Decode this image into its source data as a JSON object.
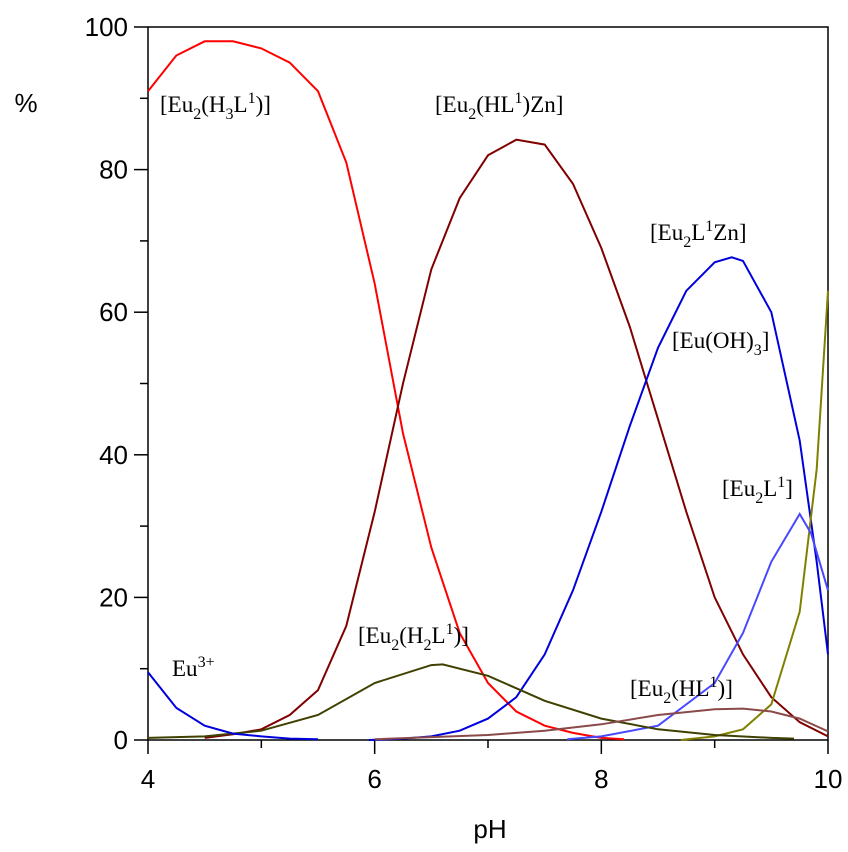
{
  "chart_data": {
    "type": "line",
    "x_label": "pH",
    "y_label": "%",
    "xlim": [
      4,
      10
    ],
    "xticks": [
      4,
      6,
      8,
      10
    ],
    "xminorticks": [
      5,
      7,
      9
    ],
    "ylim": [
      0,
      100
    ],
    "yticks": [
      0,
      20,
      40,
      60,
      80,
      100
    ],
    "yminorticks": [
      10,
      30,
      50,
      70,
      90
    ],
    "grid": false,
    "series": [
      {
        "label": [
          {
            "text": "[Eu"
          },
          {
            "text": "2",
            "shift": "sub"
          },
          {
            "text": "(H"
          },
          {
            "text": "3",
            "shift": "sub"
          },
          {
            "text": "L"
          },
          {
            "text": "1",
            "shift": "super"
          },
          {
            "text": ")]"
          }
        ],
        "color": "#ff0000",
        "x": [
          4,
          4.25,
          4.5,
          4.75,
          5,
          5.25,
          5.5,
          5.75,
          6,
          6.25,
          6.5,
          6.75,
          7,
          7.25,
          7.5,
          7.75,
          8,
          8.2
        ],
        "values": [
          91,
          96,
          98,
          98,
          97,
          95,
          91,
          81,
          64,
          43,
          27,
          15,
          8,
          4,
          2,
          1,
          0.3,
          0.1
        ]
      },
      {
        "label": [
          {
            "text": "[Eu"
          },
          {
            "text": "2",
            "shift": "sub"
          },
          {
            "text": "(HL"
          },
          {
            "text": "1",
            "shift": "super"
          },
          {
            "text": ")Zn]"
          }
        ],
        "color": "#800000",
        "x": [
          4.5,
          4.75,
          5,
          5.25,
          5.5,
          5.75,
          6,
          6.25,
          6.5,
          6.75,
          7,
          7.25,
          7.5,
          7.75,
          8,
          8.25,
          8.5,
          8.75,
          9,
          9.25,
          9.5,
          9.75,
          10
        ],
        "values": [
          0.3,
          0.8,
          1.5,
          3.5,
          7,
          16,
          32,
          50,
          66,
          76,
          82,
          84.2,
          83.5,
          78,
          69,
          58,
          45,
          32,
          20,
          12,
          6,
          2.5,
          0.5
        ]
      },
      {
        "label": [
          {
            "text": "[Eu"
          },
          {
            "text": "2",
            "shift": "sub"
          },
          {
            "text": "L"
          },
          {
            "text": "1",
            "shift": "super"
          },
          {
            "text": "Zn]"
          }
        ],
        "color": "#0000dd",
        "x": [
          5.95,
          6.25,
          6.5,
          6.75,
          7,
          7.25,
          7.5,
          7.75,
          8,
          8.25,
          8.5,
          8.75,
          9,
          9.15,
          9.25,
          9.5,
          9.75,
          9.9,
          10
        ],
        "values": [
          0,
          0.2,
          0.5,
          1.3,
          3,
          6,
          12,
          21,
          32,
          44,
          55,
          63,
          67,
          67.7,
          67.2,
          60,
          42,
          25,
          12
        ]
      },
      {
        "label": [
          {
            "text": "[Eu(OH)"
          },
          {
            "text": "3",
            "shift": "sub"
          },
          {
            "text": "]"
          }
        ],
        "color": "#808000",
        "x": [
          8.7,
          9,
          9.25,
          9.5,
          9.75,
          9.9,
          10
        ],
        "values": [
          0,
          0.5,
          1.5,
          5,
          18,
          38,
          63
        ]
      },
      {
        "label": [
          {
            "text": "[Eu"
          },
          {
            "text": "2",
            "shift": "sub"
          },
          {
            "text": "L"
          },
          {
            "text": "1",
            "shift": "super"
          },
          {
            "text": "]"
          }
        ],
        "color": "#4848ff",
        "x": [
          7.7,
          8,
          8.5,
          9,
          9.25,
          9.5,
          9.75,
          9.85,
          10
        ],
        "values": [
          0.1,
          0.5,
          2,
          8,
          15,
          25,
          31.7,
          29,
          21
        ]
      },
      {
        "label": [
          {
            "text": "[Eu"
          },
          {
            "text": "2",
            "shift": "sub"
          },
          {
            "text": "(H"
          },
          {
            "text": "2",
            "shift": "sub"
          },
          {
            "text": "L"
          },
          {
            "text": "1",
            "shift": "super"
          },
          {
            "text": ")]"
          }
        ],
        "color": "#404000",
        "x": [
          4,
          4.5,
          5,
          5.5,
          6,
          6.5,
          6.6,
          7,
          7.5,
          8,
          8.5,
          9,
          9.5,
          9.7
        ],
        "values": [
          0.3,
          0.5,
          1.3,
          3.5,
          8,
          10.5,
          10.6,
          9,
          5.5,
          3,
          1.5,
          0.7,
          0.3,
          0.2
        ]
      },
      {
        "label": [
          {
            "text": "Eu"
          },
          {
            "text": "3+",
            "shift": "super"
          }
        ],
        "color": "#0000dd",
        "x": [
          4,
          4.25,
          4.5,
          4.75,
          5,
          5.25,
          5.5
        ],
        "values": [
          9.5,
          4.5,
          2,
          0.9,
          0.5,
          0.2,
          0.1
        ]
      },
      {
        "label": [
          {
            "text": "[Eu"
          },
          {
            "text": "2",
            "shift": "sub"
          },
          {
            "text": "(HL"
          },
          {
            "text": "1",
            "shift": "super"
          },
          {
            "text": ")]"
          }
        ],
        "color": "#8b4a4a",
        "x": [
          6,
          7,
          7.5,
          8,
          8.5,
          9,
          9.25,
          9.5,
          9.75,
          10
        ],
        "values": [
          0.1,
          0.7,
          1.3,
          2.2,
          3.5,
          4.3,
          4.4,
          4,
          3,
          1.2
        ]
      }
    ]
  }
}
